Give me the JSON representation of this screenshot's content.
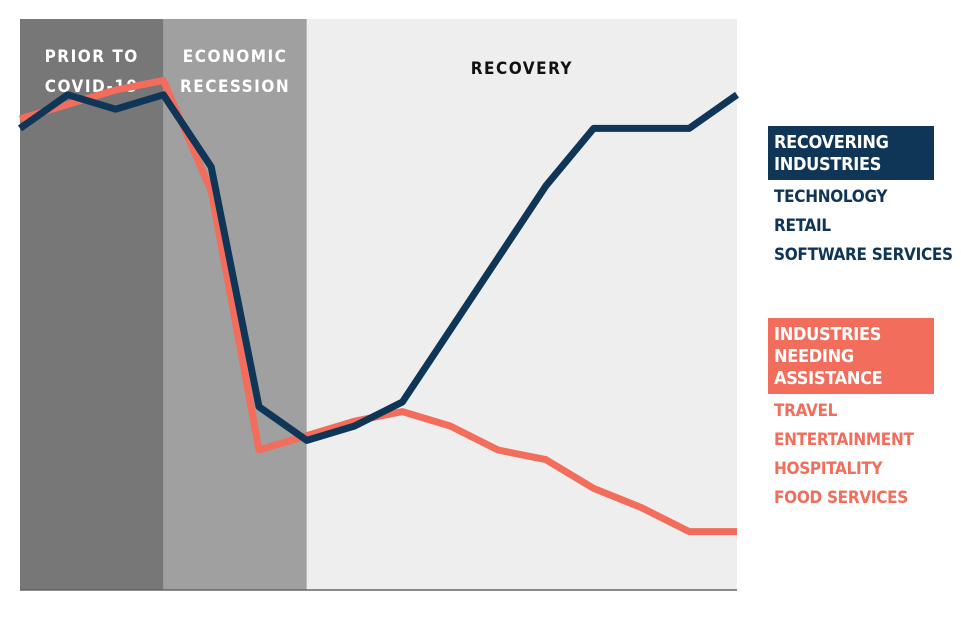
{
  "chart_data": {
    "type": "line",
    "title": "",
    "xlabel": "",
    "ylabel": "",
    "phases": [
      {
        "label_lines": [
          "PRIOR TO",
          "COVID-19"
        ],
        "from": 0,
        "to": 3,
        "color": "#777777",
        "text_color": "#ffffff"
      },
      {
        "label_lines": [
          "ECONOMIC",
          "RECESSION"
        ],
        "from": 3,
        "to": 6,
        "color": "#a0a0a0",
        "text_color": "#ffffff"
      },
      {
        "label_lines": [
          "RECOVERY"
        ],
        "from": 6,
        "to": 15,
        "color": "#eeeeee",
        "text_color": "#111111"
      }
    ],
    "x": [
      0,
      1,
      2,
      3,
      4,
      5,
      6,
      7,
      8,
      9,
      10,
      11,
      12,
      13,
      14,
      15
    ],
    "xlim": [
      0,
      15
    ],
    "ylim": [
      0,
      100
    ],
    "grid": false,
    "series": [
      {
        "name": "INDUSTRIES NEEDING ASSISTANCE",
        "color": "#f26d5b",
        "values": [
          94,
          97,
          100,
          102,
          79,
          25,
          28,
          31,
          33,
          30,
          25,
          23,
          17,
          13,
          8,
          8
        ]
      },
      {
        "name": "RECOVERING INDUSTRIES",
        "color": "#0f3557",
        "values": [
          92,
          99,
          96,
          99,
          84,
          34,
          27,
          30,
          35,
          50,
          65,
          80,
          92,
          92,
          92,
          99
        ]
      }
    ]
  },
  "legend": {
    "groups": [
      {
        "heading_lines": [
          "RECOVERING",
          "INDUSTRIES"
        ],
        "color": "#0f3557",
        "items": [
          "TECHNOLOGY",
          "RETAIL",
          "SOFTWARE SERVICES"
        ]
      },
      {
        "heading_lines": [
          "INDUSTRIES NEEDING",
          "ASSISTANCE"
        ],
        "color": "#f26d5b",
        "items": [
          "TRAVEL",
          "ENTERTAINMENT",
          "HOSPITALITY",
          "FOOD SERVICES"
        ]
      }
    ]
  }
}
